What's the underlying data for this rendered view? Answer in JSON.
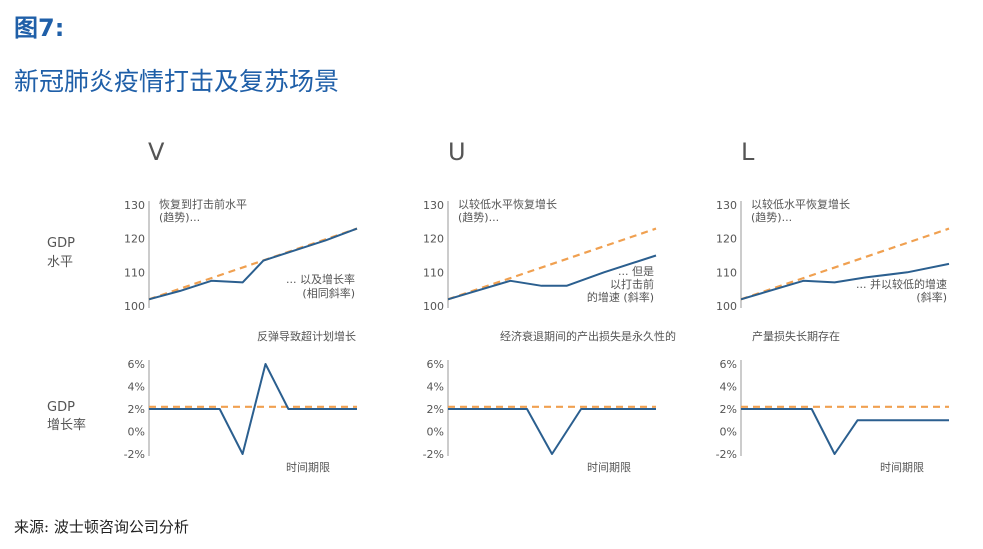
{
  "figure_label": "图7:",
  "figure_title": "新冠肺炎疫情打击及复苏场景",
  "source": "来源: 波士顿咨询公司分析",
  "colors": {
    "actual": "#2b5f8f",
    "trend": "#f0a050",
    "axis": "#999999",
    "text": "#555555",
    "title": "#1f5fa8"
  },
  "row_labels": {
    "gdp_level": [
      "GDP",
      "水平"
    ],
    "gdp_growth": [
      "GDP",
      "增长率"
    ]
  },
  "chart_data": [
    {
      "type": "line",
      "scenario": "V",
      "metric": "GDP水平",
      "ylim": [
        100,
        130
      ],
      "yticks": [
        100,
        110,
        120,
        130
      ],
      "annotations": {
        "top": [
          "恢复到打击前水平",
          "(趋势)..."
        ],
        "bottom": [
          "... 以及增长率",
          "(相同斜率)"
        ]
      },
      "caption": "反弹导致超计划增长",
      "series": [
        {
          "name": "trend",
          "style": "dashed",
          "x": [
            0,
            1
          ],
          "y": [
            102,
            123
          ]
        },
        {
          "name": "actual",
          "style": "solid",
          "x": [
            0,
            0.15,
            0.3,
            0.45,
            0.55,
            0.7,
            0.85,
            1
          ],
          "y": [
            102,
            104.5,
            107.5,
            107,
            113.5,
            116.5,
            119.5,
            123
          ]
        }
      ]
    },
    {
      "type": "line",
      "scenario": "V",
      "metric": "GDP增长率",
      "ylim": [
        -2,
        6
      ],
      "yticks": [
        "6%",
        "4%",
        "2%",
        "0%",
        "-2%"
      ],
      "yvalues": [
        6,
        4,
        2,
        0,
        -2
      ],
      "xlabel": "时间期限",
      "series": [
        {
          "name": "trend",
          "style": "dashed",
          "x": [
            0,
            1
          ],
          "y": [
            2.2,
            2.2
          ]
        },
        {
          "name": "actual",
          "style": "solid",
          "x": [
            0,
            0.34,
            0.45,
            0.56,
            0.67,
            1
          ],
          "y": [
            2,
            2,
            -2,
            6,
            2,
            2
          ]
        }
      ]
    },
    {
      "type": "line",
      "scenario": "U",
      "metric": "GDP水平",
      "ylim": [
        100,
        130
      ],
      "yticks": [
        100,
        110,
        120,
        130
      ],
      "annotations": {
        "top": [
          "以较低水平恢复增长",
          "(趋势)..."
        ],
        "bottom": [
          "... 但是",
          "以打击前",
          "的增速 (斜率)"
        ]
      },
      "caption": "经济衰退期间的产出损失是永久性的",
      "series": [
        {
          "name": "trend",
          "style": "dashed",
          "x": [
            0,
            1
          ],
          "y": [
            102,
            123
          ]
        },
        {
          "name": "actual",
          "style": "solid",
          "x": [
            0,
            0.3,
            0.45,
            0.57,
            0.75,
            1
          ],
          "y": [
            102,
            107.5,
            106,
            106,
            110,
            115
          ]
        }
      ]
    },
    {
      "type": "line",
      "scenario": "U",
      "metric": "GDP增长率",
      "ylim": [
        -2,
        6
      ],
      "yticks": [
        "6%",
        "4%",
        "2%",
        "0%",
        "-2%"
      ],
      "yvalues": [
        6,
        4,
        2,
        0,
        -2
      ],
      "xlabel": "时间期限",
      "series": [
        {
          "name": "trend",
          "style": "dashed",
          "x": [
            0,
            1
          ],
          "y": [
            2.2,
            2.2
          ]
        },
        {
          "name": "actual",
          "style": "solid",
          "x": [
            0,
            0.38,
            0.5,
            0.64,
            1
          ],
          "y": [
            2,
            2,
            -2,
            2,
            2
          ]
        }
      ]
    },
    {
      "type": "line",
      "scenario": "L",
      "metric": "GDP水平",
      "ylim": [
        100,
        130
      ],
      "yticks": [
        100,
        110,
        120,
        130
      ],
      "annotations": {
        "top": [
          "以较低水平恢复增长",
          "(趋势)..."
        ],
        "bottom": [
          "... 并以较低的增速",
          "(斜率)"
        ]
      },
      "caption": "产量损失长期存在",
      "series": [
        {
          "name": "trend",
          "style": "dashed",
          "x": [
            0,
            1
          ],
          "y": [
            102,
            123
          ]
        },
        {
          "name": "actual",
          "style": "solid",
          "x": [
            0,
            0.3,
            0.45,
            0.6,
            0.8,
            1
          ],
          "y": [
            102,
            107.5,
            107,
            108.5,
            110,
            112.5
          ]
        }
      ]
    },
    {
      "type": "line",
      "scenario": "L",
      "metric": "GDP增长率",
      "ylim": [
        -2,
        6
      ],
      "yticks": [
        "6%",
        "4%",
        "2%",
        "0%",
        "-2%"
      ],
      "yvalues": [
        6,
        4,
        2,
        0,
        -2
      ],
      "xlabel": "时间期限",
      "series": [
        {
          "name": "trend",
          "style": "dashed",
          "x": [
            0,
            1
          ],
          "y": [
            2.2,
            2.2
          ]
        },
        {
          "name": "actual",
          "style": "solid",
          "x": [
            0,
            0.34,
            0.45,
            0.56,
            1
          ],
          "y": [
            2,
            2,
            -2,
            1,
            1
          ]
        }
      ]
    }
  ]
}
